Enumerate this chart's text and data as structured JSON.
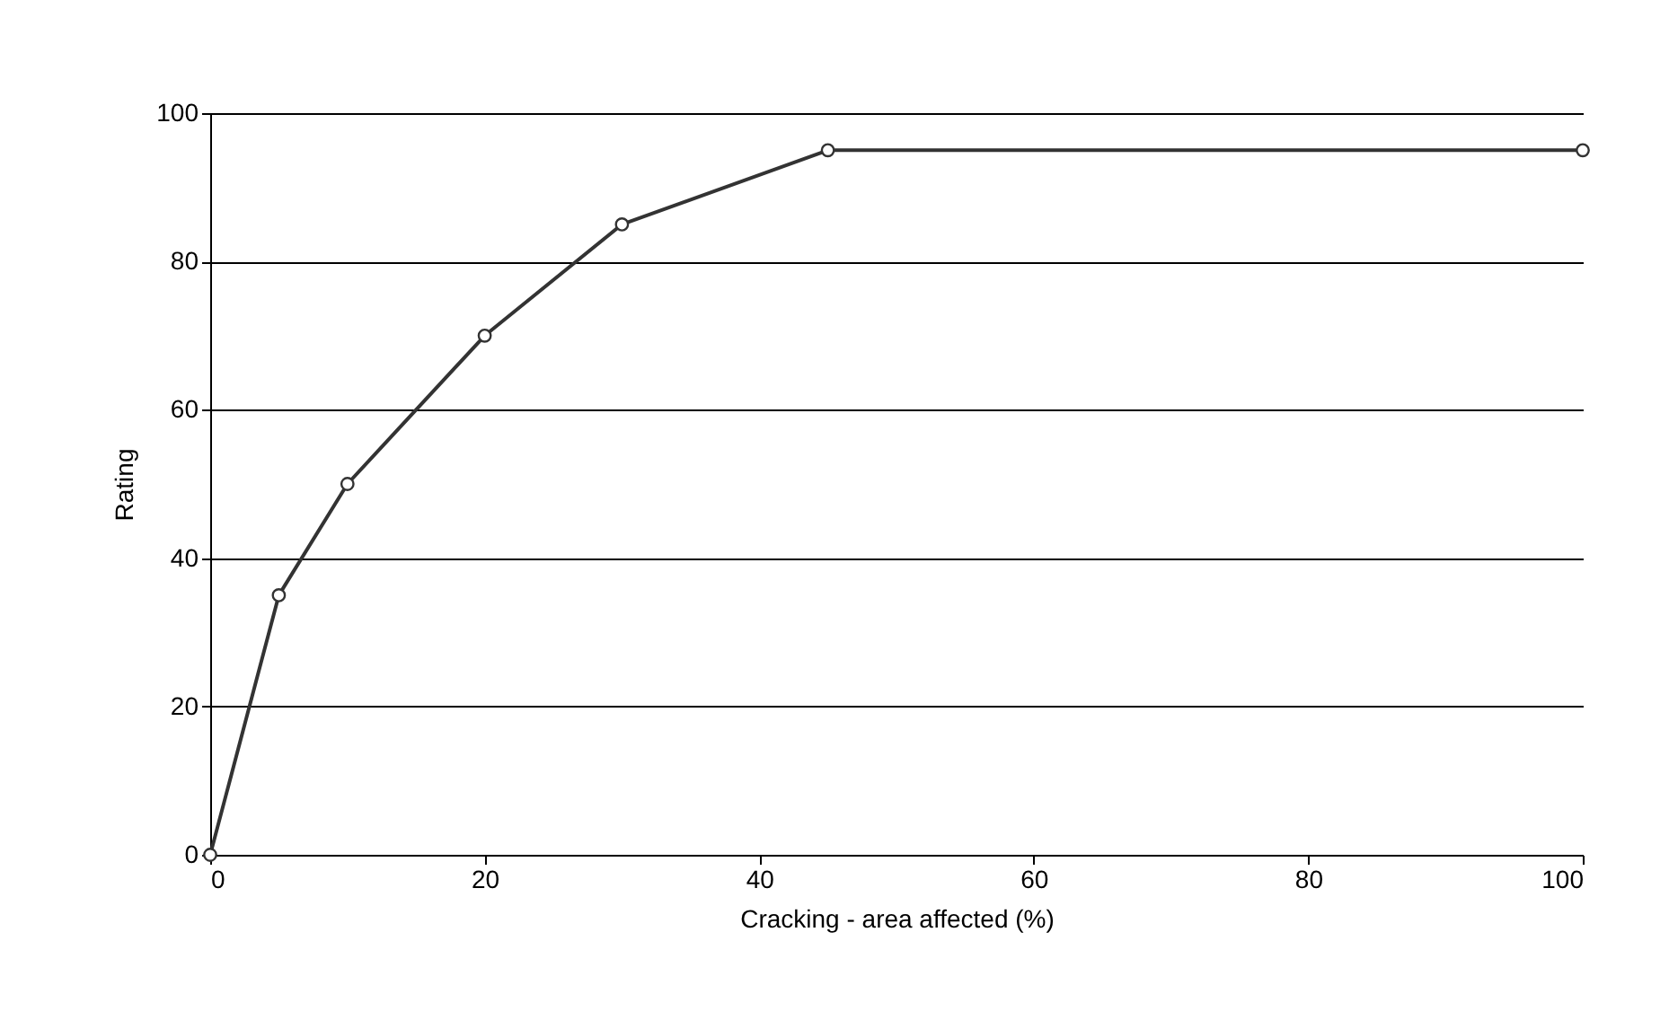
{
  "chart_data": {
    "type": "line",
    "xlabel": "Cracking - area affected (%)",
    "ylabel": "Rating",
    "x": [
      0,
      5,
      10,
      20,
      30,
      45,
      100
    ],
    "series": [
      {
        "color": "#333333",
        "values": [
          0,
          35,
          50,
          70,
          85,
          95,
          95
        ]
      }
    ],
    "xlim": [
      0,
      100
    ],
    "xticks": [
      0,
      20,
      40,
      60,
      80,
      100
    ],
    "ylim": [
      0,
      100
    ],
    "yticks": [
      0,
      20,
      40,
      60,
      80,
      100
    ],
    "grid": "y",
    "marker": "circle",
    "line_style": "solid"
  }
}
